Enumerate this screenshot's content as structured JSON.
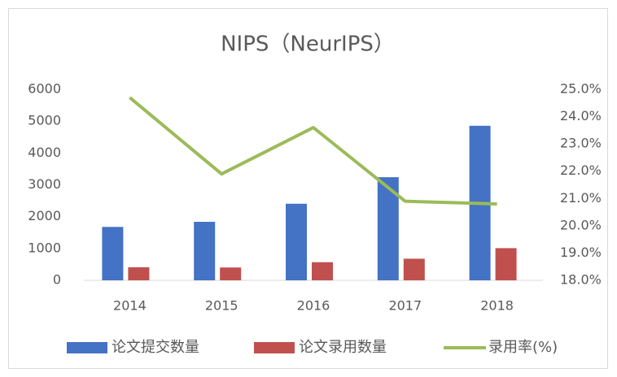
{
  "chart_data": {
    "type": "bar",
    "title": "NIPS（NeurIPS）",
    "categories": [
      "2014",
      "2015",
      "2016",
      "2017",
      "2018"
    ],
    "series": [
      {
        "name": "论文提交数量",
        "color": "#4472c4",
        "type": "bar",
        "values": [
          1678,
          1838,
          2406,
          3240,
          4856
        ]
      },
      {
        "name": "论文录用数量",
        "color": "#c0504d",
        "type": "bar",
        "values": [
          411,
          403,
          569,
          679,
          1011
        ]
      },
      {
        "name": "录用率(%)",
        "color": "#9bbb59",
        "type": "line",
        "axis": "y2",
        "values": [
          24.7,
          21.9,
          23.6,
          20.9,
          20.8
        ]
      }
    ],
    "ylim": [
      0,
      6000
    ],
    "yticks": [
      0,
      1000,
      2000,
      3000,
      4000,
      5000,
      6000
    ],
    "y2lim": [
      18,
      25
    ],
    "y2ticks": [
      {
        "value": 18,
        "label": "18.0%"
      },
      {
        "value": 19,
        "label": "19.0%"
      },
      {
        "value": 20,
        "label": "20.0%"
      },
      {
        "value": 21,
        "label": "21.0%"
      },
      {
        "value": 22,
        "label": "22.0%"
      },
      {
        "value": 23,
        "label": "23.0%"
      },
      {
        "value": 24,
        "label": "24.0%"
      },
      {
        "value": 25,
        "label": "25.0%"
      }
    ],
    "legend": "bottom"
  }
}
